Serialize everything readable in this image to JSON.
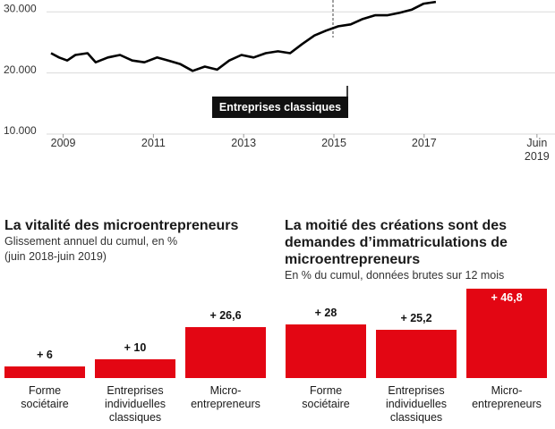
{
  "chart_data": [
    {
      "type": "line",
      "x": [
        2008.73,
        2008.91,
        2009.09,
        2009.27,
        2009.54,
        2009.72,
        2009.99,
        2010.26,
        2010.53,
        2010.8,
        2011.08,
        2011.33,
        2011.6,
        2011.87,
        2012.14,
        2012.41,
        2012.68,
        2012.95,
        2013.22,
        2013.49,
        2013.76,
        2014.03,
        2014.3,
        2014.57,
        2014.83,
        2015.1,
        2015.37,
        2015.64,
        2015.91,
        2016.18,
        2016.45,
        2016.72,
        2016.99,
        2017.26
      ],
      "series": [
        {
          "color": "#000000",
          "values": [
            22800,
            22100,
            21600,
            22500,
            22800,
            21300,
            22100,
            22500,
            21600,
            21300,
            22100,
            21600,
            21000,
            19900,
            20600,
            20100,
            21600,
            22500,
            22100,
            22800,
            23100,
            22800,
            24300,
            25700,
            26500,
            27200,
            27500,
            28400,
            29000,
            29000,
            29400,
            29900,
            30900,
            31200
          ]
        }
      ],
      "xlim": [
        2007.6,
        2019.9
      ],
      "xticks": [
        2009,
        2011,
        2013,
        2015,
        2017,
        {
          "value": 2019.5,
          "label": "Juin 2019"
        }
      ],
      "ylim": [
        10000,
        31500
      ],
      "yticks": [
        {
          "value": 10000,
          "label": "10.000"
        },
        {
          "value": 20000,
          "label": "20.000"
        },
        {
          "value": 30000,
          "label": "30.000"
        }
      ],
      "grid": true,
      "annotation": "Entreprises classiques"
    },
    {
      "type": "bar",
      "title": "La vitalité des microentrepreneurs",
      "subtitle": [
        "Glissement annuel du cumul, en %",
        "(juin 2018-juin 2019)"
      ],
      "categories": [
        "Forme sociétaire",
        "Entreprises individuelles classiques",
        "Micro-entrepreneurs"
      ],
      "values": [
        6,
        10,
        26.6
      ],
      "value_labels": [
        "+ 6",
        "+ 10",
        "+ 26,6"
      ],
      "color": "#e30613"
    },
    {
      "type": "bar",
      "title": "La moitié des créations sont des demandes d’immatriculations de microentrepreneurs",
      "subtitle": [
        "En % du cumul, données brutes sur 12 mois"
      ],
      "categories": [
        "Forme sociétaire",
        "Entreprises individuelles classiques",
        "Micro-entrepreneurs"
      ],
      "values": [
        28,
        25.2,
        46.8
      ],
      "value_labels": [
        "+ 28",
        "+ 25,2",
        "+ 46,8"
      ],
      "color": "#e30613"
    }
  ]
}
